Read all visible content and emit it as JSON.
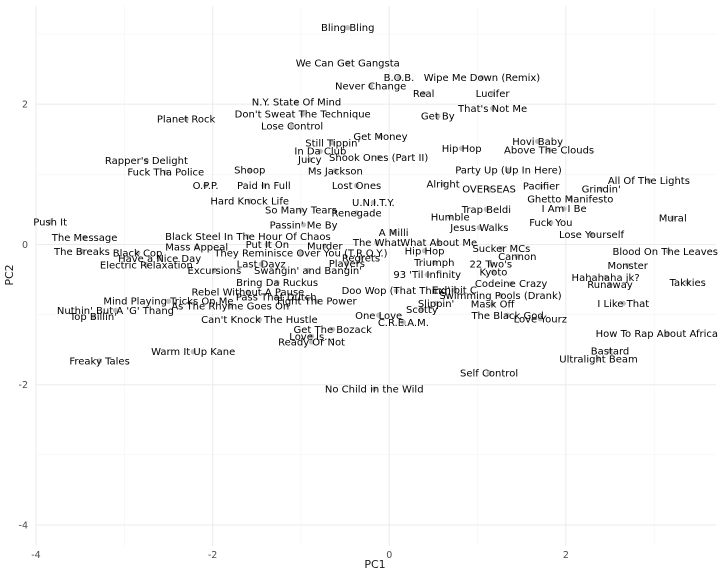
{
  "chart_data": {
    "type": "scatter",
    "xlabel": "PC1",
    "ylabel": "PC2",
    "xlim": [
      -4,
      3.7
    ],
    "ylim": [
      -4.3,
      3.4
    ],
    "x_ticks": [
      -4,
      -2,
      0,
      2
    ],
    "y_ticks": [
      -4,
      -2,
      0,
      2
    ],
    "x_tick_labels": [
      "-4",
      "-2",
      "0",
      "2"
    ],
    "y_tick_labels": [
      "-4",
      "-2",
      "0",
      "2"
    ],
    "grid": true,
    "colors": {
      "point": "#bdbdbd",
      "label": "#000000",
      "grid": "#ebebeb",
      "background": "#ffffff"
    },
    "points": [
      {
        "label": "Bling Bling",
        "x": -0.47,
        "y": 3.09
      },
      {
        "label": "We Can Get Gangsta",
        "x": -0.47,
        "y": 2.59
      },
      {
        "label": "Wipe Me Down (Remix)",
        "x": 1.05,
        "y": 2.38
      },
      {
        "label": "B.O.B.",
        "x": 0.11,
        "y": 2.38
      },
      {
        "label": "Never Change",
        "x": -0.21,
        "y": 2.26
      },
      {
        "label": "Real",
        "x": 0.39,
        "y": 2.15
      },
      {
        "label": "Lucifer",
        "x": 1.17,
        "y": 2.15
      },
      {
        "label": "N.Y. State Of Mind",
        "x": -1.05,
        "y": 2.03
      },
      {
        "label": "That's Not Me",
        "x": 1.17,
        "y": 1.94
      },
      {
        "label": "Don't Sweat The Technique",
        "x": -0.98,
        "y": 1.86
      },
      {
        "label": "Get By",
        "x": 0.55,
        "y": 1.83
      },
      {
        "label": "Planet Rock",
        "x": -2.3,
        "y": 1.79
      },
      {
        "label": "Lose Control",
        "x": -1.1,
        "y": 1.69
      },
      {
        "label": "Get Money",
        "x": -0.1,
        "y": 1.54
      },
      {
        "label": "Hovi Baby",
        "x": 1.68,
        "y": 1.47
      },
      {
        "label": "Still Tippin'",
        "x": -0.64,
        "y": 1.45
      },
      {
        "label": "Hip Hop",
        "x": 0.82,
        "y": 1.37
      },
      {
        "label": "Above The Clouds",
        "x": 1.81,
        "y": 1.35
      },
      {
        "label": "In Da Club",
        "x": -0.78,
        "y": 1.33
      },
      {
        "label": "Shook Ones (Part II)",
        "x": -0.12,
        "y": 1.24
      },
      {
        "label": "Juicy",
        "x": -0.9,
        "y": 1.21
      },
      {
        "label": "Rapper's Delight",
        "x": -2.75,
        "y": 1.2
      },
      {
        "label": "Shoop",
        "x": -1.58,
        "y": 1.06
      },
      {
        "label": "Ms Jackson",
        "x": -0.61,
        "y": 1.05
      },
      {
        "label": "Party Up (Up In Here)",
        "x": 1.35,
        "y": 1.06
      },
      {
        "label": "Fuck Tha Police",
        "x": -2.53,
        "y": 1.03
      },
      {
        "label": "All Of The Lights",
        "x": 2.94,
        "y": 0.91
      },
      {
        "label": "Paid In Full",
        "x": -1.42,
        "y": 0.84
      },
      {
        "label": "O.P.P.",
        "x": -2.08,
        "y": 0.84
      },
      {
        "label": "Lost Ones",
        "x": -0.37,
        "y": 0.84
      },
      {
        "label": "Alright",
        "x": 0.61,
        "y": 0.86
      },
      {
        "label": "Pacifier",
        "x": 1.72,
        "y": 0.83
      },
      {
        "label": "Grindin'",
        "x": 2.4,
        "y": 0.79
      },
      {
        "label": "OVERSEAS",
        "x": 1.13,
        "y": 0.79
      },
      {
        "label": "U.N.I.T.Y.",
        "x": -0.18,
        "y": 0.6
      },
      {
        "label": "Ghetto Manifesto",
        "x": 2.05,
        "y": 0.65
      },
      {
        "label": "Hard Knock Life",
        "x": -1.58,
        "y": 0.62
      },
      {
        "label": "I Am I Be",
        "x": 1.98,
        "y": 0.51
      },
      {
        "label": "Trap Beldi",
        "x": 1.1,
        "y": 0.5
      },
      {
        "label": "So Many Tears",
        "x": -1.0,
        "y": 0.49
      },
      {
        "label": "Renegade",
        "x": -0.37,
        "y": 0.45
      },
      {
        "label": "Humble",
        "x": 0.69,
        "y": 0.39
      },
      {
        "label": "Mural",
        "x": 3.21,
        "y": 0.38
      },
      {
        "label": "Push It",
        "x": -3.84,
        "y": 0.32
      },
      {
        "label": "Fuck You",
        "x": 1.83,
        "y": 0.31
      },
      {
        "label": "Jesus Walks",
        "x": 1.02,
        "y": 0.24
      },
      {
        "label": "Passin' Me By",
        "x": -0.97,
        "y": 0.28
      },
      {
        "label": "Lose Yourself",
        "x": 2.29,
        "y": 0.14
      },
      {
        "label": "A Milli",
        "x": 0.05,
        "y": 0.17
      },
      {
        "label": "The Message",
        "x": -3.45,
        "y": 0.1
      },
      {
        "label": "Black Steel In The Hour Of Chaos",
        "x": -1.6,
        "y": 0.11
      },
      {
        "label": "The What",
        "x": -0.14,
        "y": 0.03
      },
      {
        "label": "What About Me",
        "x": 0.56,
        "y": 0.03
      },
      {
        "label": "Put It On",
        "x": -1.38,
        "y": 0.0
      },
      {
        "label": "Murder",
        "x": -0.73,
        "y": -0.02
      },
      {
        "label": "Mass Appeal",
        "x": -2.18,
        "y": -0.04
      },
      {
        "label": "Sucker MCs",
        "x": 1.27,
        "y": -0.06
      },
      {
        "label": "Hip Hop",
        "x": 0.4,
        "y": -0.09
      },
      {
        "label": "Blood On The Leaves",
        "x": 3.16,
        "y": -0.1
      },
      {
        "label": "The Breaks",
        "x": -3.48,
        "y": -0.1
      },
      {
        "label": "Black Cop",
        "x": -2.85,
        "y": -0.12
      },
      {
        "label": "They Reminisce Over You (T.R.O.Y.)",
        "x": -1.0,
        "y": -0.12
      },
      {
        "label": "Cannon",
        "x": 1.45,
        "y": -0.17
      },
      {
        "label": "Regrets",
        "x": -0.32,
        "y": -0.19
      },
      {
        "label": "Have a Nice Day",
        "x": -2.6,
        "y": -0.2
      },
      {
        "label": "22 Two's",
        "x": 1.15,
        "y": -0.28
      },
      {
        "label": "Triumph",
        "x": 0.51,
        "y": -0.26
      },
      {
        "label": "Players",
        "x": -0.48,
        "y": -0.27
      },
      {
        "label": "Monster",
        "x": 2.7,
        "y": -0.3
      },
      {
        "label": "Electric Relaxation",
        "x": -2.75,
        "y": -0.29
      },
      {
        "label": "Last Dayz",
        "x": -1.45,
        "y": -0.28
      },
      {
        "label": "Kyoto",
        "x": 1.18,
        "y": -0.39
      },
      {
        "label": "Swangin' and Bangin'",
        "x": -0.92,
        "y": -0.37
      },
      {
        "label": "Excursions",
        "x": -1.98,
        "y": -0.37
      },
      {
        "label": "93 'Til Infinity",
        "x": 0.43,
        "y": -0.43
      },
      {
        "label": "Hahahaha jk?",
        "x": 2.45,
        "y": -0.47
      },
      {
        "label": "Takkies",
        "x": 3.38,
        "y": -0.54
      },
      {
        "label": "Codeine Crazy",
        "x": 1.38,
        "y": -0.56
      },
      {
        "label": "Runaway",
        "x": 2.5,
        "y": -0.57
      },
      {
        "label": "Bring Da Ruckus",
        "x": -1.27,
        "y": -0.54
      },
      {
        "label": "Exhibit C",
        "x": 0.74,
        "y": -0.65
      },
      {
        "label": "Doo Wop (That Thing)",
        "x": 0.08,
        "y": -0.66
      },
      {
        "label": "Rebel Without A Pause",
        "x": -1.6,
        "y": -0.68
      },
      {
        "label": "Swimming Pools (Drank)",
        "x": 1.26,
        "y": -0.73
      },
      {
        "label": "Pass That Dutch",
        "x": -1.28,
        "y": -0.75
      },
      {
        "label": "Mind Playing Tricks On Me",
        "x": -2.5,
        "y": -0.81
      },
      {
        "label": "Fight The Power",
        "x": -0.82,
        "y": -0.81
      },
      {
        "label": "Slippin'",
        "x": 0.53,
        "y": -0.84
      },
      {
        "label": "I Like That",
        "x": 2.65,
        "y": -0.84
      },
      {
        "label": "Mask Off",
        "x": 1.17,
        "y": -0.85
      },
      {
        "label": "As The Rhyme Goes On",
        "x": -1.8,
        "y": -0.88
      },
      {
        "label": "Nuthin' But A 'G' Thang",
        "x": -3.1,
        "y": -0.94
      },
      {
        "label": "Scotty",
        "x": 0.37,
        "y": -0.93
      },
      {
        "label": "Top Billin'",
        "x": -3.35,
        "y": -1.03
      },
      {
        "label": "One Love",
        "x": -0.12,
        "y": -1.01
      },
      {
        "label": "The Black God",
        "x": 1.34,
        "y": -1.01
      },
      {
        "label": "Love Yourz",
        "x": 1.71,
        "y": -1.06
      },
      {
        "label": "Can't Knock The Hustle",
        "x": -1.47,
        "y": -1.07
      },
      {
        "label": "C.R.E.A.M.",
        "x": 0.16,
        "y": -1.11
      },
      {
        "label": "Get The Bozack",
        "x": -0.64,
        "y": -1.21
      },
      {
        "label": "How To Rap About Africa",
        "x": 3.15,
        "y": -1.27
      },
      {
        "label": "Love Is...",
        "x": -0.88,
        "y": -1.31
      },
      {
        "label": "Ready Or Not",
        "x": -0.88,
        "y": -1.39
      },
      {
        "label": "Bastard",
        "x": 2.5,
        "y": -1.52
      },
      {
        "label": "Warm It Up Kane",
        "x": -2.22,
        "y": -1.53
      },
      {
        "label": "Ultralight Beam",
        "x": 2.37,
        "y": -1.63
      },
      {
        "label": "Freaky Tales",
        "x": -3.28,
        "y": -1.66
      },
      {
        "label": "Self Control",
        "x": 1.13,
        "y": -1.83
      },
      {
        "label": "No Child in the Wild",
        "x": -0.17,
        "y": -2.06
      }
    ]
  }
}
